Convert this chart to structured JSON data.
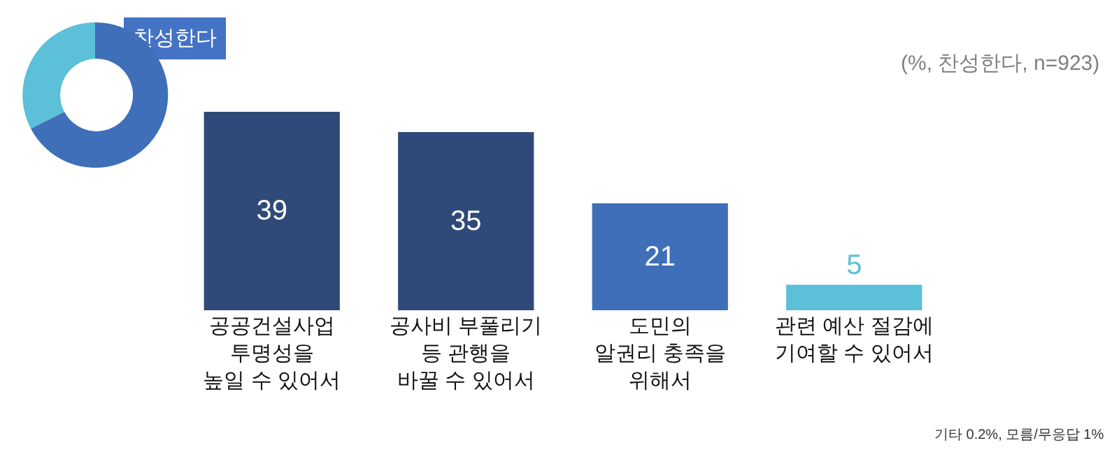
{
  "chart_data": {
    "type": "bar",
    "categories": [
      "공공건설사업\n투명성을\n높일 수 있어서",
      "공사비 부풀리기\n등 관행을\n바꿀 수 있어서",
      "도민의\n알권리 충족을\n위해서",
      "관련 예산 절감에\n기여할 수 있어서"
    ],
    "values": [
      39,
      35,
      21,
      5
    ],
    "colors": [
      "#2f4a78",
      "#2f4a78",
      "#3f6fb8",
      "#5bc0d8"
    ],
    "data_labels": true,
    "grid": false,
    "tick_labels": "x",
    "annotations": [
      "찬성한다",
      "(%, 찬성한다, n=923)",
      "기타 0.2%, 모름/무응답 1%"
    ]
  }
}
